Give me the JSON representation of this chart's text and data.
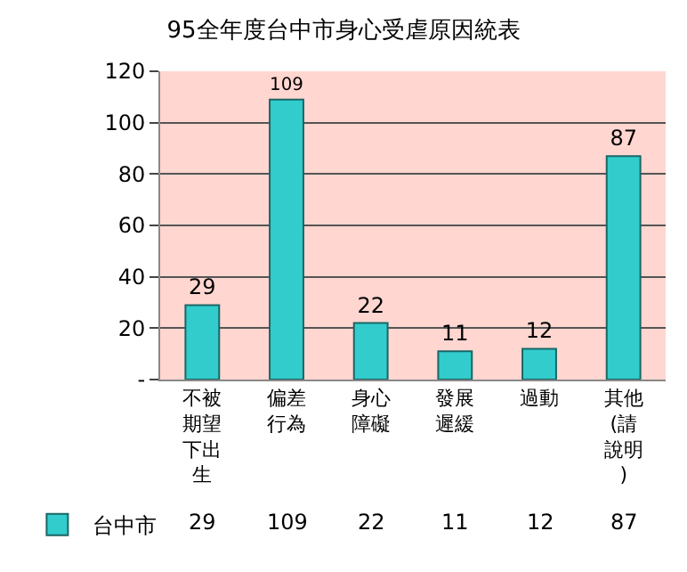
{
  "chart_data": {
    "type": "bar",
    "title": "95全年度台中市身心受虐原因統表",
    "categories": [
      "不被期望下出生",
      "偏差行為",
      "身心障礙",
      "發展遲緩",
      "過動",
      "其他(請說明)"
    ],
    "series": [
      {
        "name": "台中市",
        "color": "#33cccc",
        "values": [
          29,
          109,
          22,
          11,
          12,
          87
        ],
        "value_labels": [
          "29",
          "109",
          "22",
          "11",
          "12",
          "87"
        ]
      }
    ],
    "ylim": [
      0,
      120
    ],
    "yticks": [
      {
        "value": 0,
        "label": "-"
      },
      20,
      40,
      60,
      80,
      100,
      120
    ],
    "grid": "y",
    "legend": "bottom left",
    "data_labels": true
  }
}
